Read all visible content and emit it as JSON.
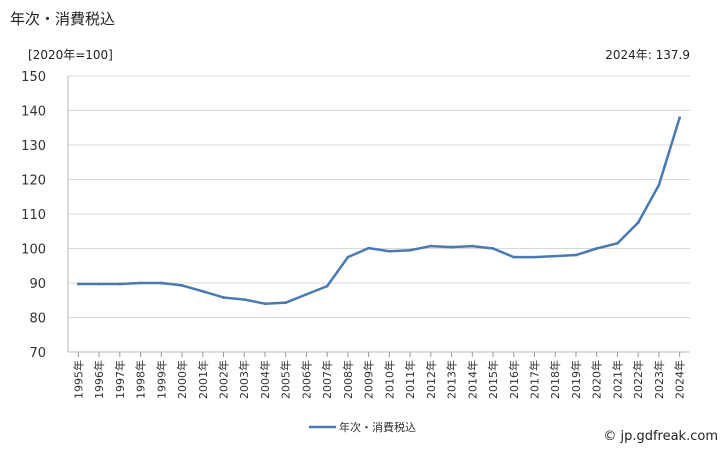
{
  "page": {
    "title": "年次・消費税込",
    "credit": "© jp.gdfreak.com"
  },
  "chart_data": {
    "type": "line",
    "title": "年次・消費税込",
    "unit_label": "[2020年=100]",
    "latest_label": "2024年: 137.9",
    "xlabel": "",
    "ylabel": "",
    "ylim": [
      70,
      150
    ],
    "yticks": [
      70,
      80,
      90,
      100,
      110,
      120,
      130,
      140,
      150
    ],
    "grid": true,
    "legend_position": "bottom",
    "categories": [
      "1995年",
      "1996年",
      "1997年",
      "1998年",
      "1999年",
      "2000年",
      "2001年",
      "2002年",
      "2003年",
      "2004年",
      "2005年",
      "2006年",
      "2007年",
      "2008年",
      "2009年",
      "2010年",
      "2011年",
      "2012年",
      "2013年",
      "2014年",
      "2015年",
      "2016年",
      "2017年",
      "2018年",
      "2019年",
      "2020年",
      "2021年",
      "2022年",
      "2023年",
      "2024年"
    ],
    "series": [
      {
        "name": "年次・消費税込",
        "color": "#4a7ab5",
        "values": [
          89.7,
          89.7,
          89.7,
          90.0,
          90.0,
          89.3,
          87.6,
          85.8,
          85.2,
          84.0,
          84.3,
          86.7,
          89.1,
          97.5,
          100.1,
          99.2,
          99.5,
          100.7,
          100.4,
          100.7,
          100.0,
          97.5,
          97.5,
          97.8,
          98.1,
          100.0,
          101.5,
          107.5,
          118.4,
          137.9
        ]
      }
    ]
  }
}
